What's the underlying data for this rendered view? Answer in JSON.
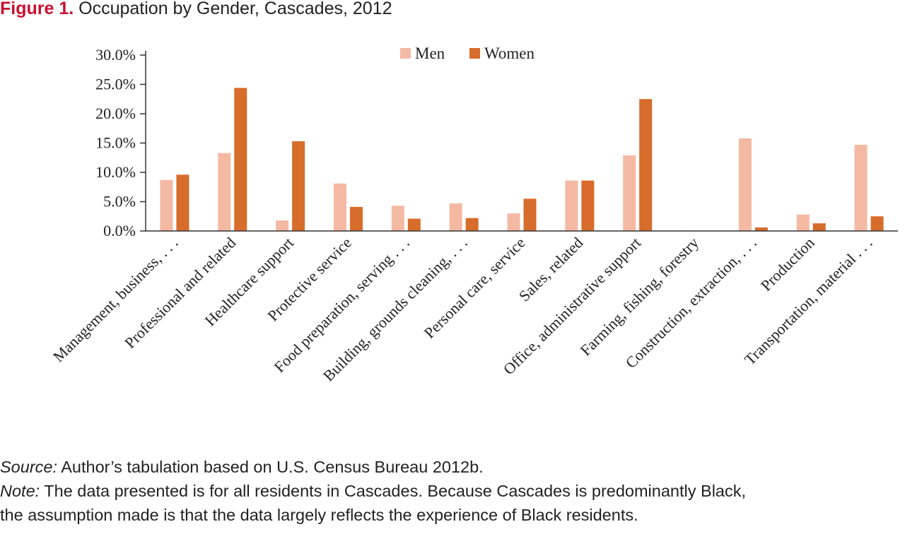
{
  "figure": {
    "label": "Figure 1.",
    "title": "Occupation by Gender, Cascades, 2012"
  },
  "colors": {
    "men": "#f4b9a3",
    "women": "#d86c2b",
    "label": "#c8102e",
    "axis": "#333333"
  },
  "chart_data": {
    "type": "bar",
    "title": "Occupation by Gender, Cascades, 2012",
    "xlabel": "",
    "ylabel": "",
    "ylim": [
      0,
      30
    ],
    "yticks": [
      "0.0%",
      "5.0%",
      "10.0%",
      "15.0%",
      "20.0%",
      "25.0%",
      "30.0%"
    ],
    "grid": false,
    "legend": "top-center",
    "categories": [
      "Management, business, . . .",
      "Professional and related",
      "Healthcare support",
      "Protective service",
      "Food preparation, serving . . .",
      "Building, grounds cleaning, . . .",
      "Personal care, service",
      "Sales, related",
      "Office, administrative support",
      "Farming, fishing, forestry",
      "Construction, extraction, . . .",
      "Production",
      "Transportation, material . . ."
    ],
    "series": [
      {
        "name": "Men",
        "values": [
          8.7,
          13.3,
          1.8,
          8.1,
          4.3,
          4.7,
          3.0,
          8.6,
          12.9,
          0.1,
          15.8,
          2.8,
          14.7
        ]
      },
      {
        "name": "Women",
        "values": [
          9.6,
          24.4,
          15.3,
          4.1,
          2.1,
          2.2,
          5.5,
          8.6,
          22.5,
          0.0,
          0.6,
          1.3,
          2.5
        ]
      }
    ]
  },
  "notes": {
    "source_lead": "Source:",
    "source_text": " Author’s tabulation based on U.S. Census Bureau 2012b.",
    "note_lead": "Note:",
    "note_text": " The data presented is for all residents in Cascades. Because Cascades is predominantly Black,",
    "note_text_2": "the assumption made is that the data largely reflects the experience of Black residents."
  }
}
